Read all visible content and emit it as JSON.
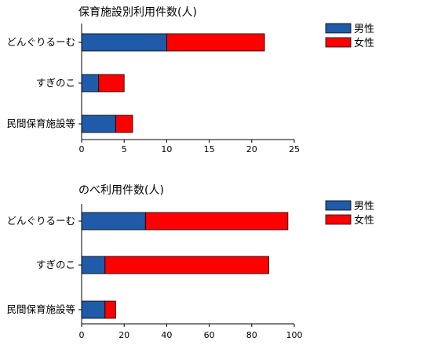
{
  "chart_data": [
    {
      "type": "bar",
      "orientation": "horizontal",
      "stacked": true,
      "title": "保育施設別利用件数(人)",
      "categories": [
        "どんぐりるーむ",
        "すぎのこ",
        "民間保育施設等"
      ],
      "series": [
        {
          "name": "男性",
          "color": "#1f5ba8",
          "values": [
            10,
            2,
            4
          ]
        },
        {
          "name": "女性",
          "color": "#ff0000",
          "values": [
            11.5,
            3,
            2
          ]
        }
      ],
      "xlim": [
        0,
        25
      ],
      "xticks": [
        0,
        5,
        10,
        15,
        20,
        25
      ],
      "legend": "top-right",
      "grid": false
    },
    {
      "type": "bar",
      "orientation": "horizontal",
      "stacked": true,
      "title": "のべ利用件数(人)",
      "categories": [
        "どんぐりるーむ",
        "すぎのこ",
        "民間保育施設等"
      ],
      "series": [
        {
          "name": "男性",
          "color": "#1f5ba8",
          "values": [
            30,
            11,
            11
          ]
        },
        {
          "name": "女性",
          "color": "#ff0000",
          "values": [
            67,
            77,
            5
          ]
        }
      ],
      "xlim": [
        0,
        100
      ],
      "xticks": [
        0,
        20,
        40,
        60,
        80,
        100
      ],
      "legend": "top-right",
      "grid": false
    }
  ]
}
